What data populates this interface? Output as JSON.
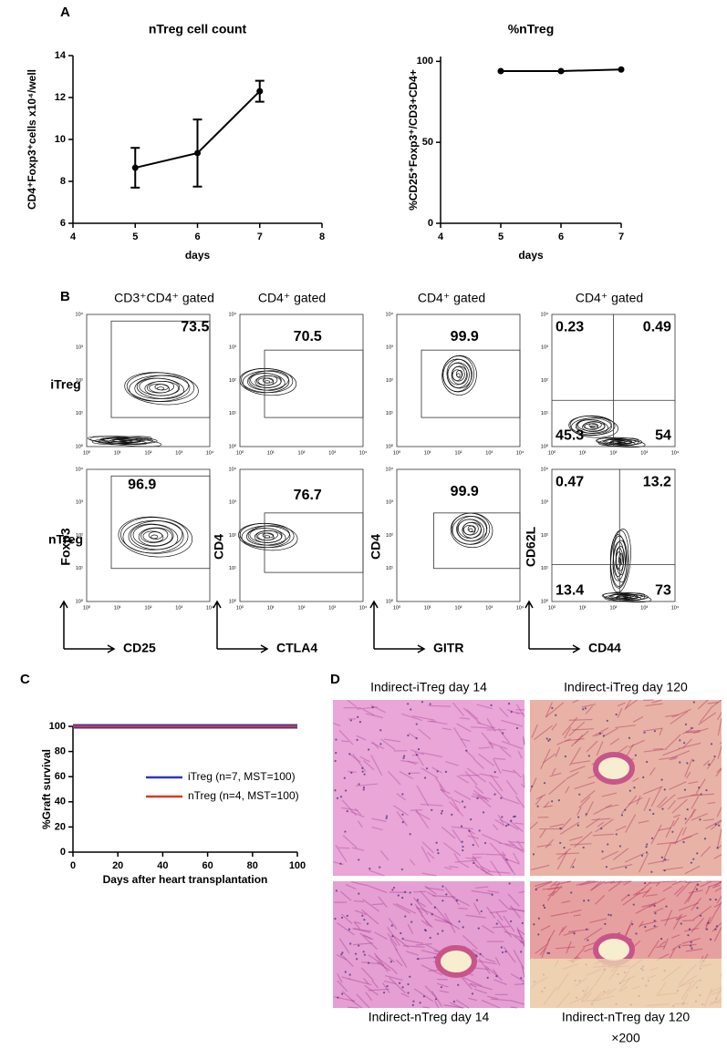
{
  "panel_labels": [
    "A",
    "B",
    "C",
    "D"
  ],
  "chart_data": [
    {
      "type": "line",
      "title": "nTreg cell count",
      "x_label": "days",
      "y_label": "CD4⁺Foxp3⁺cells x10⁴/well",
      "x": [
        5,
        6,
        7
      ],
      "series": [
        {
          "color": "#000000",
          "values": [
            8.65,
            9.35,
            12.3
          ],
          "errors": [
            0.95,
            1.6,
            0.5
          ]
        }
      ],
      "xlim": [
        4,
        8
      ],
      "xticks": [
        4,
        5,
        6,
        7,
        8
      ],
      "ylim": [
        6,
        14
      ],
      "yticks": [
        6,
        8,
        10,
        12,
        14
      ],
      "grid": false,
      "markers": true
    },
    {
      "type": "line",
      "title": "%nTreg",
      "x_label": "days",
      "y_label": "%CD25⁺Foxp3⁺/CD3+CD4+",
      "x": [
        5,
        6,
        7
      ],
      "series": [
        {
          "color": "#000000",
          "values": [
            94,
            94,
            95
          ]
        }
      ],
      "xlim": [
        4,
        7
      ],
      "xticks": [
        4,
        5,
        6,
        7
      ],
      "ylim": [
        0,
        103
      ],
      "yticks": [
        0,
        50,
        100
      ],
      "grid": false,
      "markers": true
    },
    {
      "type": "line",
      "x_label": "Days after heart transplantation",
      "y_label": "%Graft survival",
      "x": [
        0,
        100
      ],
      "series": [
        {
          "name": "iTreg (n=7, MST=100)",
          "color": "#2b35c8",
          "values": [
            100,
            100
          ]
        },
        {
          "name": "nTreg (n=4, MST=100)",
          "color": "#d9381e",
          "values": [
            100,
            100
          ]
        }
      ],
      "xlim": [
        0,
        100
      ],
      "xticks": [
        0,
        20,
        40,
        60,
        80,
        100
      ],
      "ylim": [
        0,
        100
      ],
      "yticks": [
        0,
        20,
        40,
        60,
        80,
        100
      ],
      "grid": false,
      "markers": false,
      "legend": "right"
    }
  ],
  "flow_panel": {
    "columns": [
      "CD3⁺CD4⁺ gated",
      "CD4⁺ gated",
      "CD4⁺ gated",
      "CD4⁺ gated"
    ],
    "rows": [
      "iTreg",
      "nTreg"
    ],
    "y_axis_labels": [
      "Foxp3",
      "CD4",
      "CD4",
      "CD62L"
    ],
    "x_axis_labels": [
      "CD25",
      "CTLA4",
      "GITR",
      "CD44"
    ],
    "log_ticks": [
      "10⁰",
      "10¹",
      "10²",
      "10³",
      "10⁴"
    ],
    "plots": [
      [
        [
          73.5
        ],
        [
          70.5
        ],
        [
          99.9
        ],
        [
          0.23,
          0.49,
          45.3,
          54
        ]
      ],
      [
        [
          96.9
        ],
        [
          76.7
        ],
        [
          99.9
        ],
        [
          0.47,
          13.2,
          13.4,
          73
        ]
      ]
    ]
  },
  "histology_panel": {
    "captions": [
      "Indirect-iTreg day 14",
      "Indirect-iTreg  day 120",
      "Indirect-nTreg  day 14",
      "Indirect-nTreg  day 120"
    ],
    "magnification": "×200"
  }
}
